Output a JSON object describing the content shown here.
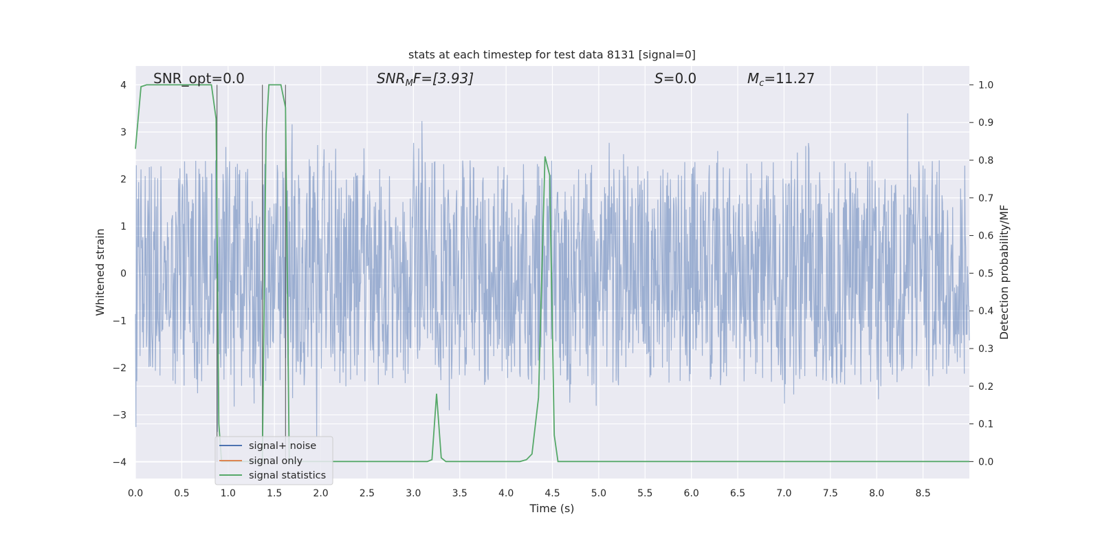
{
  "chart_data": {
    "type": "line",
    "title": "stats at each timestep for test data 8131 [signal=0]",
    "xlabel": "Time (s)",
    "ylabel": "Whitened strain",
    "y2label": "Detection probability/MF",
    "xlim": [
      0.0,
      9.0
    ],
    "ylim": [
      -4.35,
      4.4
    ],
    "y2lim": [
      -0.045,
      1.05
    ],
    "xticks": [
      "0.0",
      "0.5",
      "1.0",
      "1.5",
      "2.0",
      "2.5",
      "3.0",
      "3.5",
      "4.0",
      "4.5",
      "5.0",
      "5.5",
      "6.0",
      "6.5",
      "7.0",
      "7.5",
      "8.0",
      "8.5"
    ],
    "yticks": [
      "4",
      "3",
      "2",
      "1",
      "0",
      "−1",
      "−2",
      "−3",
      "−4"
    ],
    "y2ticks": [
      "1.0",
      "0.9",
      "0.8",
      "0.7",
      "0.6",
      "0.5",
      "0.4",
      "0.3",
      "0.2",
      "0.1",
      "0.0"
    ],
    "grid": true,
    "legend_position": "lower-left",
    "annotations": {
      "snr_opt": "SNR_opt=0.0",
      "snr_mf_main": "SNR",
      "snr_mf_sub": "M",
      "snr_mf_rest": "F=[3.93]",
      "s_main": "S",
      "s_rest": "=0.0",
      "mc_main": "M",
      "mc_sub": "c",
      "mc_rest": "=11.27"
    },
    "series": [
      {
        "name": "signal+ noise",
        "color": "#4c72b0",
        "description_of_shape": "dense noise band between about -2 and 2, spikes to about ±3.9",
        "envelope_amplitude": 1.6,
        "max_spike": 3.9
      },
      {
        "name": "signal only",
        "color": "#dd8452",
        "values": []
      },
      {
        "name": "signal statistics",
        "color": "#55a868",
        "axis": "right",
        "x": [
          0.0,
          0.06,
          0.12,
          0.2,
          0.3,
          0.4,
          0.5,
          0.6,
          0.7,
          0.82,
          0.87,
          0.9,
          0.93,
          0.96,
          1.0,
          1.2,
          1.3,
          1.34,
          1.37,
          1.41,
          1.44,
          1.5,
          1.57,
          1.62,
          1.66,
          1.7,
          1.8,
          2.0,
          2.5,
          3.0,
          3.15,
          3.2,
          3.25,
          3.3,
          3.35,
          3.4,
          3.6,
          3.8,
          4.0,
          4.15,
          4.22,
          4.28,
          4.35,
          4.42,
          4.47,
          4.52,
          4.56,
          4.61,
          4.7,
          5.0,
          6.0,
          7.0,
          8.0,
          9.0
        ],
        "values": [
          0.83,
          0.995,
          1.0,
          1.0,
          1.0,
          1.0,
          1.0,
          1.0,
          1.0,
          1.0,
          0.91,
          0.1,
          0.0,
          0.0,
          0.0,
          0.0,
          0.0,
          0.0,
          0.0,
          0.87,
          1.0,
          1.0,
          1.0,
          0.94,
          0.0,
          0.0,
          0.0,
          0.0,
          0.0,
          0.0,
          0.0,
          0.005,
          0.18,
          0.01,
          0.0,
          0.0,
          0.0,
          0.0,
          0.0,
          0.0,
          0.005,
          0.02,
          0.17,
          0.81,
          0.76,
          0.07,
          0.0,
          0.0,
          0.0,
          0.0,
          0.0,
          0.0,
          0.0,
          0.0
        ]
      }
    ],
    "vertical_lines_x": [
      0.88,
      1.37,
      1.62
    ]
  },
  "colors": {
    "plot_bg": "#eaeaf2",
    "grid": "#ffffff",
    "noise": "#4c72b0",
    "signal": "#dd8452",
    "stats": "#55a868",
    "vline": "#3a3a3a"
  }
}
